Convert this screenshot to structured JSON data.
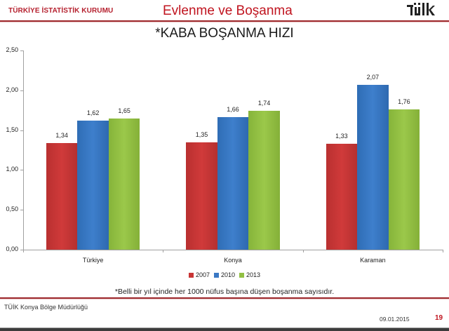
{
  "header": {
    "org": "TÜRKİYE İSTATİSTİK KURUMU",
    "title": "Evlenme ve Boşanma",
    "logo_text": "TÜİK"
  },
  "colors": {
    "brand_red": "#c0141f",
    "series_2007": "#c83535",
    "series_2010": "#3a78c4",
    "series_2013": "#92c044"
  },
  "chart_data": {
    "type": "bar",
    "title": "*KABA BOŞANMA HIZI",
    "categories": [
      "Türkiye",
      "Konya",
      "Karaman"
    ],
    "series": [
      {
        "name": "2007",
        "values": [
          1.34,
          1.35,
          1.33
        ],
        "labels": [
          "1,34",
          "1,35",
          "1,33"
        ]
      },
      {
        "name": "2010",
        "values": [
          1.62,
          1.66,
          2.07
        ],
        "labels": [
          "1,62",
          "1,66",
          "2,07"
        ]
      },
      {
        "name": "2013",
        "values": [
          1.65,
          1.74,
          1.76
        ],
        "labels": [
          "1,65",
          "1,74",
          "1,76"
        ]
      }
    ],
    "xlabel": "",
    "ylabel": "",
    "ylim": [
      0,
      2.5
    ],
    "yticks": [
      "0,00",
      "0,50",
      "1,00",
      "1,50",
      "2,00",
      "2,50"
    ],
    "grid": false,
    "legend_position": "bottom",
    "footnote": "*Belli bir yıl içinde her 1000 nüfus başına düşen boşanma sayısıdır."
  },
  "footer": {
    "office": "TÜİK Konya Bölge Müdürlüğü",
    "date": "09.01.2015",
    "page": "19"
  }
}
